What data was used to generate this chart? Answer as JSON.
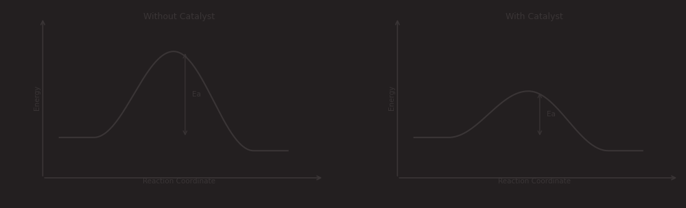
{
  "background_color": "#231f20",
  "text_color": "#3a3536",
  "line_color": "#3a3536",
  "arrow_color": "#3a3536",
  "title1": "Without Catalyst",
  "title2": "With Catalyst",
  "title_fontsize": 9,
  "label_fontsize": 7.5,
  "xlabel": "Reaction Coordinate",
  "ylabel": "Energy",
  "reactant_energy": 0.2,
  "product_energy": 0.1,
  "peak_no_cat": 0.85,
  "peak_cat": 0.55,
  "curve_color": "#3a3536",
  "line_width": 1.5
}
